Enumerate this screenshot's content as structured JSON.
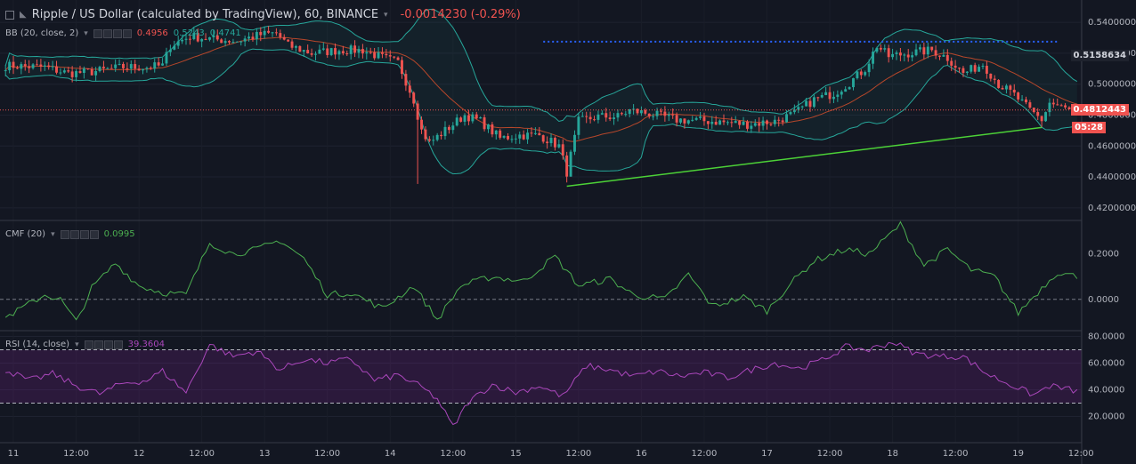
{
  "header": {
    "symbol_title": "Ripple / US Dollar (calculated by TradingView), 60, BINANCE",
    "change_text": "-0.0014230 (-0.29%)"
  },
  "indicators": {
    "bb": {
      "label": "BB (20, close, 2)",
      "v1": "0.4956",
      "v2": "0.5243",
      "v3": "0.4741"
    },
    "cmf": {
      "label": "CMF (20)",
      "value": "0.0995"
    },
    "rsi": {
      "label": "RSI (14, close)",
      "value": "39.3604"
    }
  },
  "price_tags": {
    "upper": "0.5158634",
    "current": "0.4812443",
    "countdown": "05:28"
  },
  "colors": {
    "background": "#131722",
    "up": "#26a69a",
    "down": "#ef5350",
    "bb_band": "#26a69a",
    "bb_basis": "#b7472a",
    "trendline": "#4cd137",
    "resistance": "#2962ff",
    "cmf": "#4caf50",
    "rsi": "#9c27b0"
  },
  "chart_data": [
    {
      "type": "candlestick",
      "pane": "price",
      "yticks": [
        "0.5400000",
        "0.5200000",
        "0.5000000",
        "0.4800000",
        "0.4600000",
        "0.4400000",
        "0.4200000"
      ],
      "ylim": [
        0.413,
        0.551
      ],
      "xticks": [
        "11",
        "12:00",
        "12",
        "12:00",
        "13",
        "12:00",
        "14",
        "12:00",
        "15",
        "12:00",
        "16",
        "12:00",
        "17",
        "12:00",
        "18",
        "12:00",
        "19",
        "12:00"
      ],
      "anchors": [
        [
          0,
          0.512
        ],
        [
          10,
          0.511
        ],
        [
          16,
          0.507
        ],
        [
          22,
          0.508
        ],
        [
          30,
          0.511
        ],
        [
          36,
          0.511
        ],
        [
          40,
          0.512
        ],
        [
          42,
          0.525
        ],
        [
          47,
          0.531
        ],
        [
          53,
          0.529
        ],
        [
          59,
          0.528
        ],
        [
          65,
          0.532
        ],
        [
          69,
          0.533
        ],
        [
          72,
          0.525
        ],
        [
          78,
          0.52
        ],
        [
          85,
          0.522
        ],
        [
          91,
          0.522
        ],
        [
          95,
          0.518
        ],
        [
          100,
          0.514
        ],
        [
          104,
          0.49
        ],
        [
          106,
          0.47
        ],
        [
          108,
          0.462
        ],
        [
          112,
          0.47
        ],
        [
          117,
          0.48
        ],
        [
          121,
          0.476
        ],
        [
          126,
          0.465
        ],
        [
          131,
          0.467
        ],
        [
          136,
          0.467
        ],
        [
          141,
          0.46
        ],
        [
          143,
          0.443
        ],
        [
          146,
          0.476
        ],
        [
          151,
          0.479
        ],
        [
          156,
          0.479
        ],
        [
          159,
          0.483
        ],
        [
          164,
          0.481
        ],
        [
          171,
          0.477
        ],
        [
          180,
          0.476
        ],
        [
          189,
          0.474
        ],
        [
          196,
          0.476
        ],
        [
          201,
          0.481
        ],
        [
          206,
          0.49
        ],
        [
          211,
          0.494
        ],
        [
          215,
          0.501
        ],
        [
          219,
          0.51
        ],
        [
          222,
          0.525
        ],
        [
          225,
          0.518
        ],
        [
          230,
          0.52
        ],
        [
          236,
          0.522
        ],
        [
          240,
          0.517
        ],
        [
          244,
          0.507
        ],
        [
          249,
          0.513
        ],
        [
          253,
          0.5
        ],
        [
          257,
          0.493
        ],
        [
          261,
          0.483
        ],
        [
          264,
          0.477
        ],
        [
          266,
          0.488
        ],
        [
          271,
          0.483
        ],
        [
          273,
          0.481
        ]
      ],
      "resistance_level": 0.5275,
      "trendline": {
        "from": [
          143,
          0.434
        ],
        "to": [
          264,
          0.472
        ]
      }
    },
    {
      "type": "line",
      "pane": "CMF",
      "yticks": [
        "0.2000",
        "0.0000"
      ],
      "ylim": [
        -0.13,
        0.34
      ],
      "zero_line": 0,
      "anchors": [
        [
          0,
          -0.08
        ],
        [
          5,
          -0.03
        ],
        [
          10,
          0.02
        ],
        [
          14,
          0.0
        ],
        [
          18,
          -0.1
        ],
        [
          22,
          0.05
        ],
        [
          28,
          0.16
        ],
        [
          34,
          0.06
        ],
        [
          40,
          0.03
        ],
        [
          46,
          0.02
        ],
        [
          52,
          0.25
        ],
        [
          58,
          0.2
        ],
        [
          64,
          0.22
        ],
        [
          70,
          0.26
        ],
        [
          76,
          0.18
        ],
        [
          82,
          0.02
        ],
        [
          88,
          0.03
        ],
        [
          96,
          -0.04
        ],
        [
          104,
          0.06
        ],
        [
          110,
          -0.09
        ],
        [
          116,
          0.06
        ],
        [
          124,
          0.1
        ],
        [
          132,
          0.08
        ],
        [
          140,
          0.19
        ],
        [
          146,
          0.06
        ],
        [
          154,
          0.09
        ],
        [
          160,
          0.02
        ],
        [
          168,
          0.0
        ],
        [
          174,
          0.11
        ],
        [
          180,
          -0.03
        ],
        [
          188,
          0.01
        ],
        [
          194,
          -0.05
        ],
        [
          200,
          0.07
        ],
        [
          206,
          0.17
        ],
        [
          214,
          0.22
        ],
        [
          220,
          0.2
        ],
        [
          228,
          0.33
        ],
        [
          234,
          0.15
        ],
        [
          240,
          0.22
        ],
        [
          246,
          0.13
        ],
        [
          252,
          0.1
        ],
        [
          258,
          -0.06
        ],
        [
          264,
          0.05
        ],
        [
          268,
          0.12
        ],
        [
          273,
          0.1
        ]
      ]
    },
    {
      "type": "line",
      "pane": "RSI",
      "yticks": [
        "80.0000",
        "60.0000",
        "40.0000",
        "20.0000"
      ],
      "ylim": [
        3,
        83
      ],
      "band": [
        30,
        70
      ],
      "anchors": [
        [
          0,
          55
        ],
        [
          6,
          47
        ],
        [
          12,
          52
        ],
        [
          18,
          43
        ],
        [
          24,
          37
        ],
        [
          30,
          45
        ],
        [
          36,
          47
        ],
        [
          40,
          54
        ],
        [
          46,
          38
        ],
        [
          52,
          74
        ],
        [
          58,
          65
        ],
        [
          64,
          69
        ],
        [
          70,
          55
        ],
        [
          76,
          63
        ],
        [
          82,
          60
        ],
        [
          88,
          63
        ],
        [
          94,
          47
        ],
        [
          100,
          51
        ],
        [
          106,
          42
        ],
        [
          110,
          33
        ],
        [
          114,
          12
        ],
        [
          118,
          31
        ],
        [
          124,
          44
        ],
        [
          130,
          38
        ],
        [
          136,
          43
        ],
        [
          142,
          35
        ],
        [
          148,
          58
        ],
        [
          154,
          55
        ],
        [
          160,
          50
        ],
        [
          166,
          54
        ],
        [
          172,
          50
        ],
        [
          178,
          53
        ],
        [
          184,
          49
        ],
        [
          190,
          55
        ],
        [
          196,
          60
        ],
        [
          202,
          56
        ],
        [
          208,
          62
        ],
        [
          214,
          72
        ],
        [
          220,
          70
        ],
        [
          226,
          76
        ],
        [
          232,
          67
        ],
        [
          238,
          65
        ],
        [
          244,
          65
        ],
        [
          250,
          52
        ],
        [
          256,
          44
        ],
        [
          262,
          36
        ],
        [
          266,
          43
        ],
        [
          273,
          39
        ]
      ]
    }
  ]
}
